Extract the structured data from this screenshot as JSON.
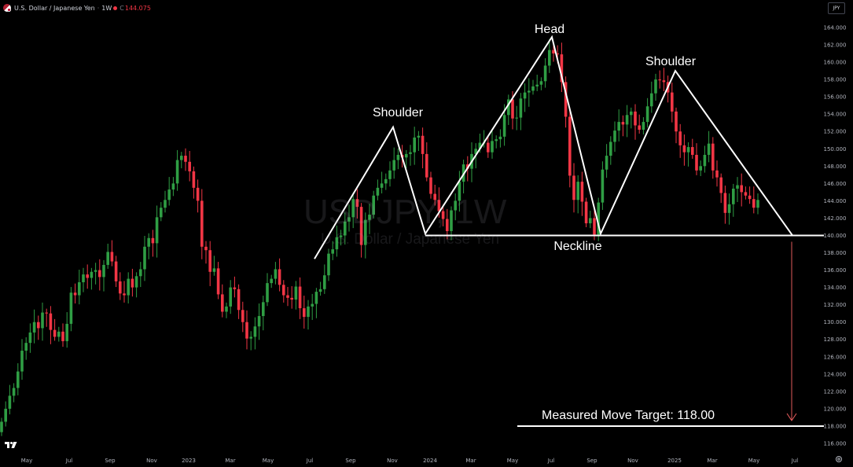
{
  "header": {
    "symbol_desc": "U.S. Dollar / Japanese Yen",
    "interval": "1W",
    "close_label": "C",
    "close_value": "144.075"
  },
  "currency_button": "JPY",
  "watermark": {
    "symbol": "USDJPY, 1W",
    "desc": "U.S. Dollar / Japanese Yen"
  },
  "annotations": {
    "left_shoulder": "Shoulder",
    "head": "Head",
    "right_shoulder": "Shoulder",
    "neckline": "Neckline",
    "target": "Measured Move Target: 118.00"
  },
  "colors": {
    "up": "#2f9e44",
    "down": "#f23645",
    "background": "#000000",
    "pattern_lines": "#ffffff",
    "target_arrow": "#e05a5a"
  },
  "icons": [
    "us-flag-icon",
    "gear-icon",
    "tradingview-logo-icon"
  ],
  "chart_data": {
    "type": "candlestick",
    "title": "",
    "xlabel": "",
    "ylabel": "",
    "ylim": [
      115,
      165
    ],
    "y_ticks": [
      "164.000",
      "162.000",
      "160.000",
      "158.000",
      "156.000",
      "154.000",
      "152.000",
      "150.000",
      "148.000",
      "146.000",
      "144.000",
      "142.000",
      "140.000",
      "138.000",
      "136.000",
      "134.000",
      "132.000",
      "130.000",
      "128.000",
      "126.000",
      "124.000",
      "122.000",
      "120.000",
      "118.000",
      "116.000"
    ],
    "x_ticks": [
      "May",
      "Jul",
      "Sep",
      "Nov",
      "2023",
      "Mar",
      "May",
      "Jul",
      "Sep",
      "Nov",
      "2024",
      "Mar",
      "May",
      "Jul",
      "Sep",
      "Nov",
      "2025",
      "Mar",
      "May",
      "Jul"
    ],
    "neckline": 140.0,
    "target": 118.0,
    "pattern_points": [
      {
        "label": "left-shoulder-start",
        "date": "2023-07",
        "value": 137.3
      },
      {
        "label": "left-shoulder-peak",
        "date": "2023-11",
        "value": 152.5
      },
      {
        "label": "neckline-left",
        "date": "2023-12",
        "value": 140.2
      },
      {
        "label": "head-peak",
        "date": "2024-07",
        "value": 162.9
      },
      {
        "label": "neckline-mid",
        "date": "2024-09",
        "value": 140.2
      },
      {
        "label": "right-shoulder-peak",
        "date": "2025-01",
        "value": 159.0
      },
      {
        "label": "right-shoulder-end",
        "date": "2025-06",
        "value": 140.0
      }
    ],
    "weekly_closes": [
      118.5,
      120.0,
      121.5,
      122.4,
      124.3,
      126.7,
      127.6,
      128.8,
      130.0,
      129.3,
      131.1,
      131.0,
      129.1,
      128.3,
      128.9,
      127.8,
      129.8,
      133.4,
      133.1,
      134.6,
      135.5,
      135.1,
      135.8,
      136.0,
      135.2,
      136.6,
      138.1,
      137.0,
      134.7,
      133.3,
      133.1,
      135.0,
      134.0,
      135.3,
      136.1,
      138.7,
      139.7,
      139.1,
      142.1,
      143.2,
      144.1,
      145.3,
      146.0,
      148.7,
      149.2,
      148.5,
      147.4,
      145.5,
      144.0,
      138.7,
      138.3,
      135.8,
      136.2,
      133.2,
      131.2,
      131.8,
      134.0,
      133.8,
      131.4,
      130.0,
      128.1,
      128.3,
      129.5,
      130.7,
      132.3,
      134.5,
      135.0,
      136.1,
      134.3,
      133.1,
      132.8,
      132.6,
      134.1,
      131.6,
      130.6,
      131.8,
      132.1,
      133.5,
      133.8,
      135.4,
      137.9,
      138.4,
      139.8,
      140.0,
      141.6,
      142.1,
      144.2,
      143.3,
      138.9,
      141.8,
      142.4,
      144.6,
      145.5,
      146.0,
      146.5,
      147.5,
      148.7,
      149.3,
      149.0,
      149.4,
      149.6,
      151.3,
      151.5,
      149.4,
      146.7,
      144.8,
      144.1,
      142.8,
      141.9,
      140.5,
      142.9,
      144.0,
      146.2,
      148.2,
      147.7,
      149.4,
      150.0,
      150.7,
      150.7,
      149.6,
      150.9,
      151.1,
      151.4,
      153.9,
      155.7,
      153.5,
      153.6,
      155.8,
      156.5,
      156.7,
      157.2,
      157.4,
      157.8,
      159.6,
      161.4,
      161.0,
      160.9,
      157.7,
      153.7,
      146.9,
      144.1,
      146.2,
      143.9,
      141.4,
      142.0,
      140.1,
      143.8,
      147.6,
      149.2,
      150.8,
      152.1,
      153.1,
      152.8,
      153.9,
      154.3,
      152.7,
      152.2,
      153.1,
      154.9,
      156.4,
      158.0,
      157.9,
      157.7,
      156.5,
      154.3,
      152.0,
      150.4,
      149.6,
      150.2,
      149.3,
      147.5,
      148.0,
      149.3,
      150.6,
      147.5,
      146.7,
      144.9,
      142.6,
      143.6,
      145.4,
      145.8,
      145.0,
      144.6,
      144.2,
      143.2,
      144.1
    ],
    "grid": false,
    "legend": "none"
  }
}
